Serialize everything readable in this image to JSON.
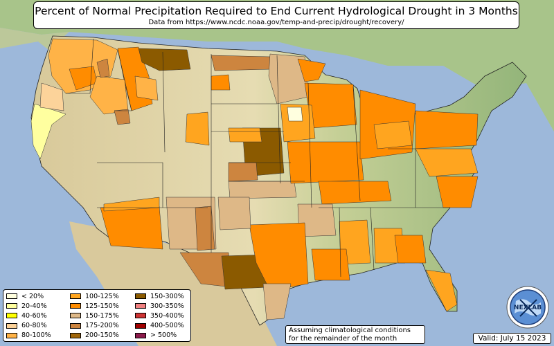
{
  "header": {
    "title": "Percent of Normal Precipitation Required to End Current Hydrological Drought in 3 Months",
    "subtitle": "Data from https://www.ncdc.noaa.gov/temp-and-precip/drought/recovery/"
  },
  "legend": {
    "columns": [
      [
        {
          "label": "< 20%",
          "color": "#ffffdf"
        },
        {
          "label": "20-40%",
          "color": "#ffff9f"
        },
        {
          "label": "40-60%",
          "color": "#ffff00"
        },
        {
          "label": "60-80%",
          "color": "#fcd39a"
        },
        {
          "label": "80-100%",
          "color": "#ffb347"
        }
      ],
      [
        {
          "label": "100-125%",
          "color": "#ffa51f"
        },
        {
          "label": "125-150%",
          "color": "#ff8c00"
        },
        {
          "label": "150-175%",
          "color": "#deb887"
        },
        {
          "label": "175-200%",
          "color": "#cd853f"
        },
        {
          "label": "200-150%",
          "color": "#a0660a"
        }
      ],
      [
        {
          "label": "150-300%",
          "color": "#8b5a00"
        },
        {
          "label": "300-350%",
          "color": "#f08080"
        },
        {
          "label": "350-400%",
          "color": "#cd3333"
        },
        {
          "label": "400-500%",
          "color": "#a00000"
        },
        {
          "label": "> 500%",
          "color": "#8b1a4a"
        }
      ]
    ]
  },
  "notes": {
    "assumption_line1": "Assuming climatological conditions",
    "assumption_line2": "for the remainder of the month",
    "valid": "Valid: July 15 2023"
  },
  "logo": {
    "text": "NEXLAB",
    "icon": "nexlab-globe-logo"
  },
  "colors": {
    "ocean": "#9db8da",
    "land_west": "#e8dcb0",
    "land_east": "#a9c48a"
  }
}
